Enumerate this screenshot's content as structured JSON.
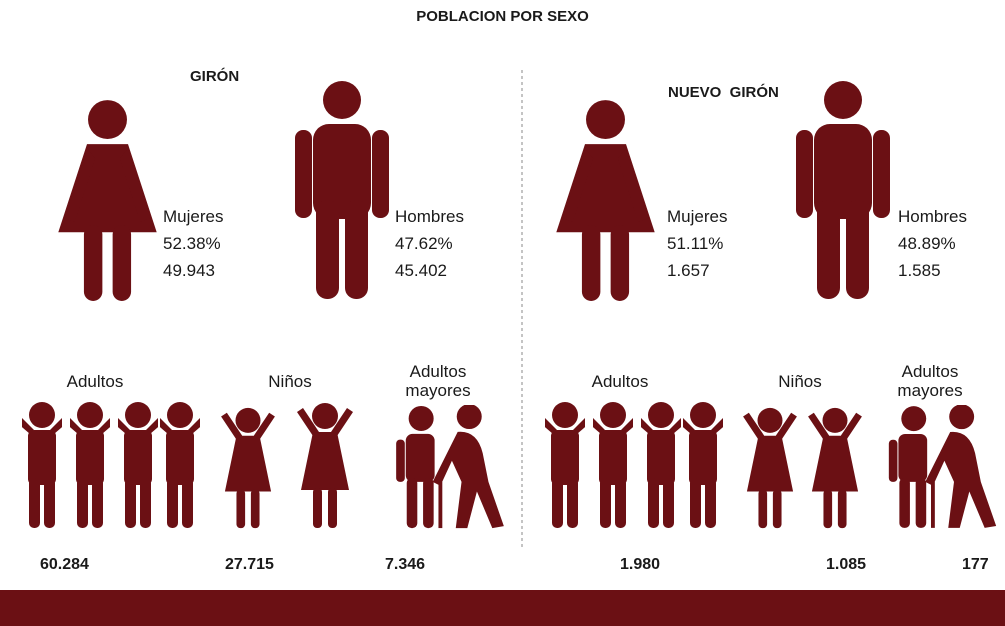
{
  "title": "POBLACION POR SEXO",
  "sections": [
    {
      "name": "GIRÓN",
      "sexes": [
        {
          "label": "Mujeres",
          "percent": "52.38%",
          "count": "49.943"
        },
        {
          "label": "Hombres",
          "percent": "47.62%",
          "count": "45.402"
        }
      ],
      "groups": [
        {
          "label": "Adultos",
          "count": "60.284"
        },
        {
          "label": "Niños",
          "count": "27.715"
        },
        {
          "label": "Adultos mayores",
          "count": "7.346"
        }
      ]
    },
    {
      "name": "NUEVO  GIRÓN",
      "sexes": [
        {
          "label": "Mujeres",
          "percent": "51.11%",
          "count": "1.657"
        },
        {
          "label": "Hombres",
          "percent": "48.89%",
          "count": "1.585"
        }
      ],
      "groups": [
        {
          "label": "Adultos",
          "count": "1.980"
        },
        {
          "label": "Niños",
          "count": "1.085"
        },
        {
          "label": "Adultos mayores",
          "count": "177"
        }
      ]
    }
  ]
}
